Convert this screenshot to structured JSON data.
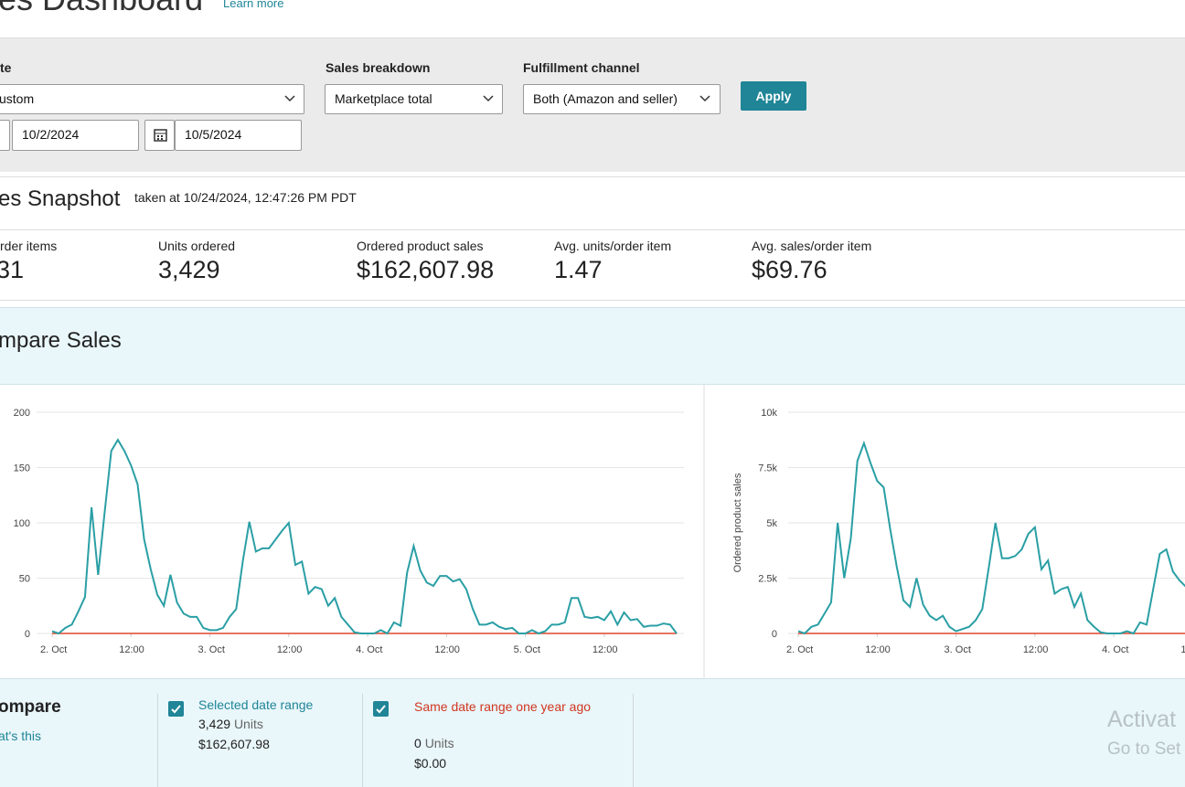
{
  "header": {
    "title": "es Dashboard",
    "link": "Learn more"
  },
  "filters": {
    "date": {
      "label": "te",
      "value": "ustom",
      "from": "10/2/2024",
      "to": "10/5/2024"
    },
    "breakdown": {
      "label": "Sales breakdown",
      "value": "Marketplace total"
    },
    "channel": {
      "label": "Fulfillment channel",
      "value": "Both (Amazon and seller)"
    },
    "apply": "Apply"
  },
  "snapshot": {
    "title": "es Snapshot",
    "taken": "taken at 10/24/2024, 12:47:26 PM PDT",
    "metrics": [
      {
        "label": "rder items",
        "value": "31"
      },
      {
        "label": "Units ordered",
        "value": "3,429"
      },
      {
        "label": "Ordered product sales",
        "value": "$162,607.98"
      },
      {
        "label": "Avg. units/order item",
        "value": "1.47"
      },
      {
        "label": "Avg. sales/order item",
        "value": "$69.76"
      }
    ]
  },
  "compare": {
    "title": "mpare Sales",
    "legend": {
      "title": "ompare",
      "help": "at's this",
      "items": [
        {
          "units": "3,429",
          "unit": "Units",
          "sales": "$162,607.98"
        },
        {
          "units": "0",
          "unit": "Units",
          "sales": "$0.00"
        }
      ]
    }
  },
  "watermark": {
    "line1": "Activat",
    "line2": "Go to Set"
  },
  "chart_data": [
    {
      "type": "line",
      "xlim": [
        0,
        95
      ],
      "ylim": [
        0,
        200
      ],
      "yticks": [
        0,
        50,
        100,
        150,
        200
      ],
      "grid": true,
      "xticks": [
        {
          "value": 0,
          "label": "2. Oct"
        },
        {
          "value": 12,
          "label": "12:00"
        },
        {
          "value": 24,
          "label": "3. Oct"
        },
        {
          "value": 36,
          "label": "12:00"
        },
        {
          "value": 48,
          "label": "4. Oct"
        },
        {
          "value": 60,
          "label": "12:00"
        },
        {
          "value": 72,
          "label": "5. Oct"
        },
        {
          "value": 84,
          "label": "12:00"
        }
      ],
      "series": [
        {
          "name": "Selected date range",
          "color": "#2a9fa5",
          "values": [
            2,
            0,
            5,
            8,
            20,
            33,
            114,
            53,
            110,
            165,
            175,
            165,
            152,
            135,
            85,
            58,
            35,
            25,
            53,
            28,
            18,
            15,
            15,
            5,
            3,
            3,
            5,
            15,
            22,
            65,
            101,
            74,
            77,
            77,
            85,
            93,
            100,
            62,
            65,
            36,
            42,
            40,
            25,
            32,
            15,
            8,
            1,
            0,
            0,
            0,
            3,
            0,
            10,
            7,
            55,
            79,
            57,
            46,
            43,
            52,
            52,
            47,
            49,
            40,
            22,
            8,
            8,
            10,
            6,
            4,
            5,
            0,
            0,
            3,
            0,
            2,
            8,
            8,
            10,
            32,
            32,
            15,
            14,
            15,
            12,
            20,
            8,
            19,
            12,
            13,
            6,
            7,
            7,
            9,
            8,
            0
          ]
        },
        {
          "name": "Same date range one year ago",
          "color": "#e0452b",
          "values": [
            0,
            0,
            0,
            0,
            0,
            0,
            0,
            0,
            0,
            0,
            0,
            0,
            0,
            0,
            0,
            0,
            0,
            0,
            0,
            0,
            0,
            0,
            0,
            0,
            0,
            0,
            0,
            0,
            0,
            0,
            0,
            0,
            0,
            0,
            0,
            0,
            0,
            0,
            0,
            0,
            0,
            0,
            0,
            0,
            0,
            0,
            0,
            0,
            0,
            0,
            0,
            0,
            0,
            0,
            0,
            0,
            0,
            0,
            0,
            0,
            0,
            0,
            0,
            0,
            0,
            0,
            0,
            0,
            0,
            0,
            0,
            0,
            0,
            0,
            0,
            0,
            0,
            0,
            0,
            0,
            0,
            0,
            0,
            0,
            0,
            0,
            0,
            0,
            0,
            0,
            0,
            0,
            0,
            0,
            0,
            0
          ]
        }
      ]
    },
    {
      "type": "line",
      "ylabel": "Ordered product sales",
      "xlim": [
        0,
        59
      ],
      "ylim": [
        0,
        10000
      ],
      "grid": true,
      "yticks": [
        0,
        {
          "value": 2500,
          "label": "2.5k"
        },
        {
          "value": 5000,
          "label": "5k"
        },
        {
          "value": 7500,
          "label": "7.5k"
        },
        {
          "value": 10000,
          "label": "10k"
        }
      ],
      "xticks": [
        {
          "value": 0,
          "label": "2. Oct"
        },
        {
          "value": 12,
          "label": "12:00"
        },
        {
          "value": 24,
          "label": "3. Oct"
        },
        {
          "value": 36,
          "label": "12:00"
        },
        {
          "value": 48,
          "label": "4. Oct"
        },
        {
          "value": 60,
          "label": "1"
        }
      ],
      "series": [
        {
          "color": "#2a9fa5",
          "values": [
            100,
            0,
            300,
            400,
            900,
            1400,
            5000,
            2500,
            4300,
            7800,
            8600,
            7700,
            6900,
            6600,
            4700,
            3000,
            1500,
            1200,
            2500,
            1300,
            800,
            600,
            800,
            300,
            100,
            200,
            300,
            600,
            1100,
            3000,
            5000,
            3400,
            3400,
            3500,
            3800,
            4500,
            4800,
            2900,
            3300,
            1800,
            2000,
            2100,
            1200,
            1800,
            600,
            300,
            50,
            0,
            0,
            0,
            100,
            0,
            500,
            400,
            2000,
            3600,
            3800,
            2800,
            2400,
            2100
          ]
        },
        {
          "color": "#e0452b",
          "values": [
            0,
            0,
            0,
            0,
            0,
            0,
            0,
            0,
            0,
            0,
            0,
            0,
            0,
            0,
            0,
            0,
            0,
            0,
            0,
            0,
            0,
            0,
            0,
            0,
            0,
            0,
            0,
            0,
            0,
            0,
            0,
            0,
            0,
            0,
            0,
            0,
            0,
            0,
            0,
            0,
            0,
            0,
            0,
            0,
            0,
            0,
            0,
            0,
            0,
            0,
            0,
            0,
            0,
            0,
            0,
            0,
            0,
            0,
            0,
            0
          ]
        }
      ]
    }
  ]
}
